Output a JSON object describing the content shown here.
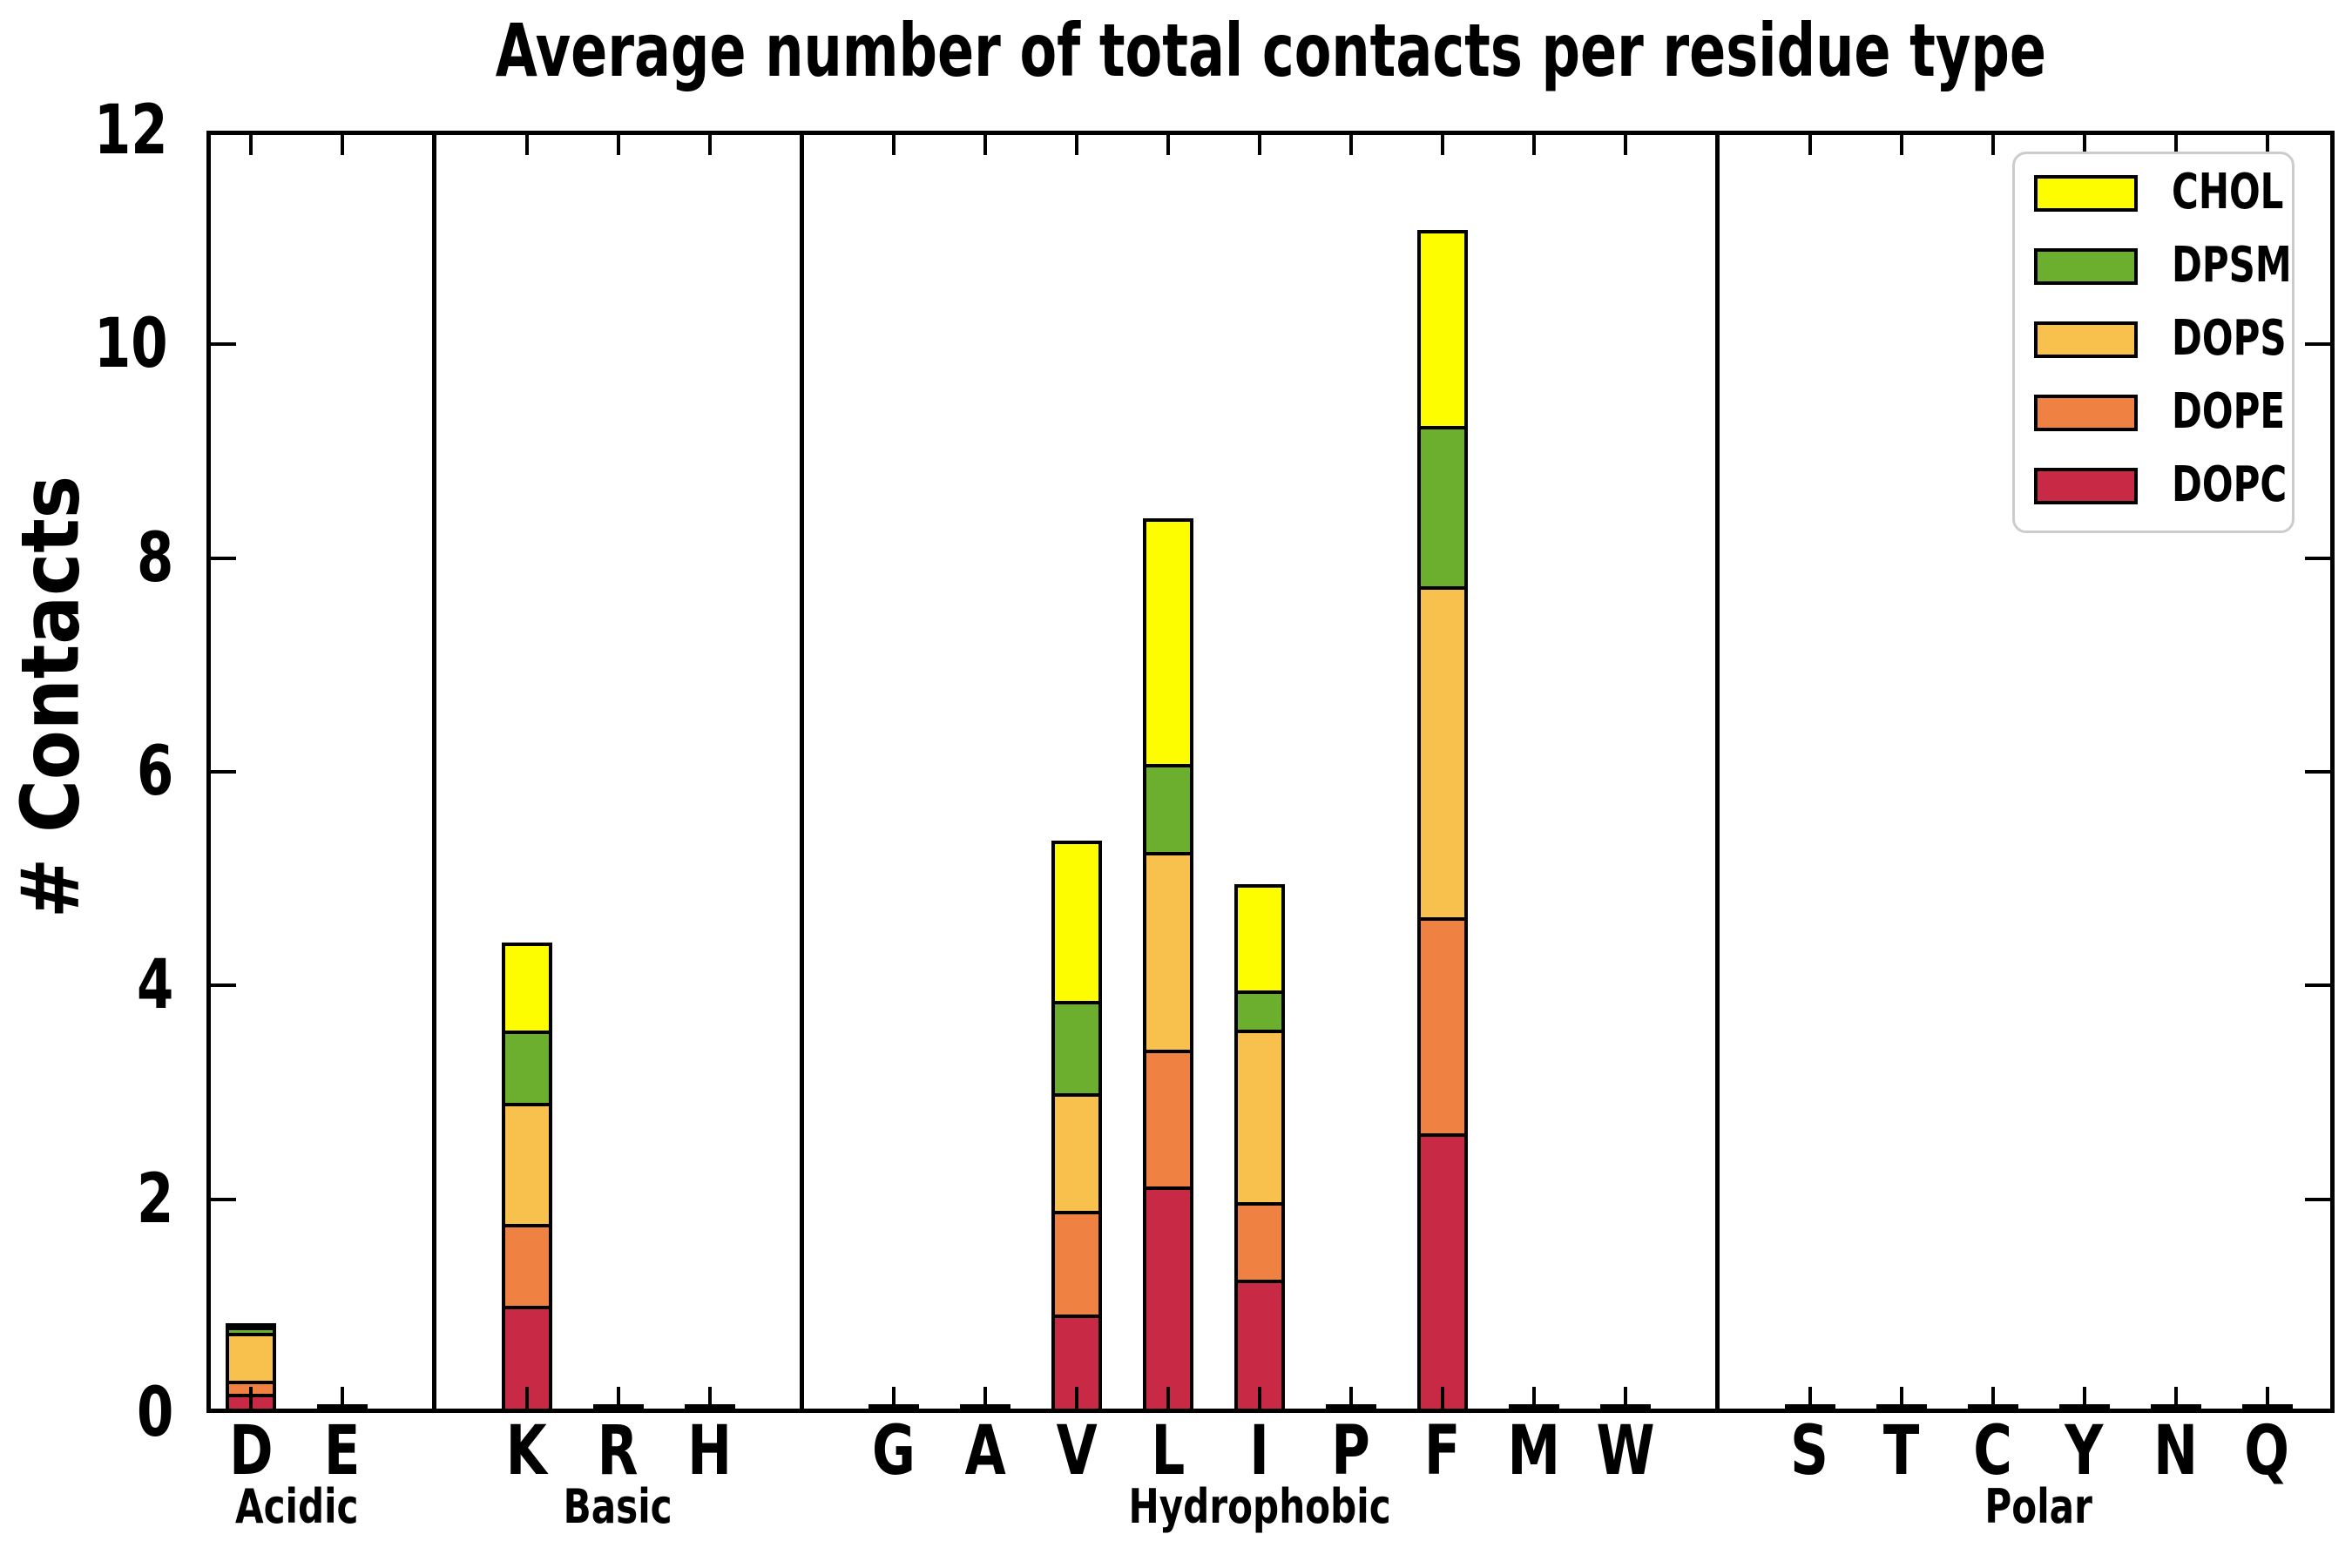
{
  "chart_data": {
    "type": "bar",
    "stacked": true,
    "title": "Average number of total contacts per residue type",
    "ylabel": "# Contacts",
    "xlabel": "",
    "ylim": [
      0,
      12
    ],
    "yticks": [
      0,
      2,
      4,
      6,
      8,
      10,
      12
    ],
    "grid": false,
    "legend_position": "upper right",
    "legend": [
      {
        "label": "CHOL",
        "color": "#fdfd00"
      },
      {
        "label": "DPSM",
        "color": "#6cae2e"
      },
      {
        "label": "DOPS",
        "color": "#f8c04c"
      },
      {
        "label": "DOPE",
        "color": "#ef8143"
      },
      {
        "label": "DOPC",
        "color": "#c82a45"
      }
    ],
    "stack_order": [
      "DOPC",
      "DOPE",
      "DOPS",
      "DPSM",
      "CHOL"
    ],
    "groups": [
      {
        "label": "Acidic",
        "residues": [
          "D",
          "E"
        ]
      },
      {
        "label": "Basic",
        "residues": [
          "K",
          "R",
          "H"
        ]
      },
      {
        "label": "Hydrophobic",
        "residues": [
          "G",
          "A",
          "V",
          "L",
          "I",
          "P",
          "F",
          "M",
          "W"
        ]
      },
      {
        "label": "Polar",
        "residues": [
          "S",
          "T",
          "C",
          "Y",
          "N",
          "Q"
        ]
      }
    ],
    "values": {
      "D": {
        "DOPC": 0.18,
        "DOPE": 0.12,
        "DOPS": 0.45,
        "DPSM": 0.06,
        "CHOL": 0.03
      },
      "E": {
        "DOPC": 0.01,
        "DOPE": 0.01,
        "DOPS": 0.0,
        "DPSM": 0.0,
        "CHOL": 0.0
      },
      "K": {
        "DOPC": 1.0,
        "DOPE": 0.77,
        "DOPS": 1.13,
        "DPSM": 0.68,
        "CHOL": 0.82
      },
      "R": {
        "DOPC": 0.01,
        "DOPE": 0.01,
        "DOPS": 0.0,
        "DPSM": 0.0,
        "CHOL": 0.0
      },
      "H": {
        "DOPC": 0.01,
        "DOPE": 0.01,
        "DOPS": 0.0,
        "DPSM": 0.0,
        "CHOL": 0.0
      },
      "G": {
        "DOPC": 0.01,
        "DOPE": 0.01,
        "DOPS": 0.0,
        "DPSM": 0.0,
        "CHOL": 0.0
      },
      "A": {
        "DOPC": 0.01,
        "DOPE": 0.01,
        "DOPS": 0.0,
        "DPSM": 0.0,
        "CHOL": 0.0
      },
      "V": {
        "DOPC": 0.92,
        "DOPE": 0.97,
        "DOPS": 1.1,
        "DPSM": 0.87,
        "CHOL": 1.5
      },
      "L": {
        "DOPC": 2.12,
        "DOPE": 1.28,
        "DOPS": 1.85,
        "DPSM": 0.82,
        "CHOL": 2.3
      },
      "I": {
        "DOPC": 1.25,
        "DOPE": 0.72,
        "DOPS": 1.62,
        "DPSM": 0.36,
        "CHOL": 1.0
      },
      "P": {
        "DOPC": 0.01,
        "DOPE": 0.01,
        "DOPS": 0.0,
        "DPSM": 0.0,
        "CHOL": 0.0
      },
      "F": {
        "DOPC": 2.62,
        "DOPE": 2.02,
        "DOPS": 3.1,
        "DPSM": 1.5,
        "CHOL": 1.83
      },
      "M": {
        "DOPC": 0.01,
        "DOPE": 0.01,
        "DOPS": 0.0,
        "DPSM": 0.0,
        "CHOL": 0.0
      },
      "W": {
        "DOPC": 0.01,
        "DOPE": 0.01,
        "DOPS": 0.0,
        "DPSM": 0.0,
        "CHOL": 0.0
      },
      "S": {
        "DOPC": 0.01,
        "DOPE": 0.01,
        "DOPS": 0.0,
        "DPSM": 0.0,
        "CHOL": 0.0
      },
      "T": {
        "DOPC": 0.01,
        "DOPE": 0.01,
        "DOPS": 0.0,
        "DPSM": 0.0,
        "CHOL": 0.0
      },
      "C": {
        "DOPC": 0.01,
        "DOPE": 0.01,
        "DOPS": 0.0,
        "DPSM": 0.0,
        "CHOL": 0.0
      },
      "Y": {
        "DOPC": 0.01,
        "DOPE": 0.01,
        "DOPS": 0.0,
        "DPSM": 0.0,
        "CHOL": 0.0
      },
      "N": {
        "DOPC": 0.01,
        "DOPE": 0.01,
        "DOPS": 0.0,
        "DPSM": 0.0,
        "CHOL": 0.0
      },
      "Q": {
        "DOPC": 0.01,
        "DOPE": 0.01,
        "DOPS": 0.0,
        "DPSM": 0.0,
        "CHOL": 0.0
      }
    }
  }
}
